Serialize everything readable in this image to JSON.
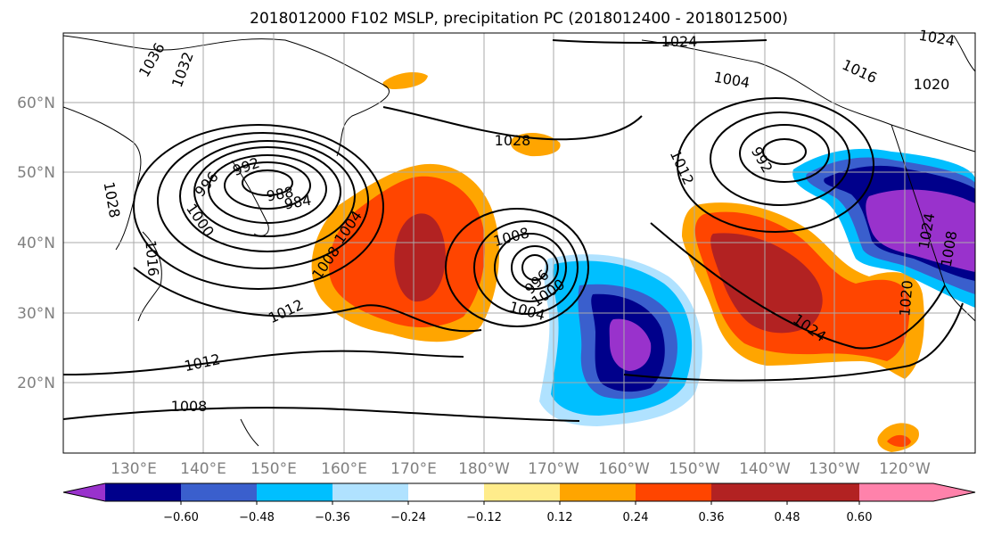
{
  "title": "2018012000 F102 MSLP, precipitation PC (2018012400 - 2018012500)",
  "lat_labels": [
    "60°N",
    "50°N",
    "40°N",
    "30°N",
    "20°N"
  ],
  "lon_labels": [
    "130°E",
    "140°E",
    "150°E",
    "160°E",
    "170°E",
    "180°W",
    "170°W",
    "160°W",
    "150°W",
    "140°W",
    "130°W",
    "120°W"
  ],
  "isobar_labels": [
    "1036",
    "1032",
    "1028",
    "1016",
    "992",
    "996",
    "1000",
    "988",
    "984",
    "1004",
    "1008",
    "1012",
    "1012",
    "1008",
    "1028",
    "1008",
    "996",
    "1000",
    "1004",
    "1012",
    "992",
    "1024",
    "1016",
    "1020",
    "1024",
    "1024",
    "1024",
    "1020",
    "1004",
    "1008"
  ],
  "colorbar": {
    "tick_labels": [
      "−0.60",
      "−0.48",
      "−0.36",
      "−0.24",
      "−0.12",
      "0.12",
      "0.24",
      "0.36",
      "0.48",
      "0.60"
    ],
    "colors": [
      "#9932cc",
      "#00008b",
      "#3a5fcd",
      "#00bfff",
      "#b0e2ff",
      "#ffffff",
      "#ffec8b",
      "#ffa500",
      "#ff4500",
      "#b22222",
      "#ff82ab"
    ]
  }
}
